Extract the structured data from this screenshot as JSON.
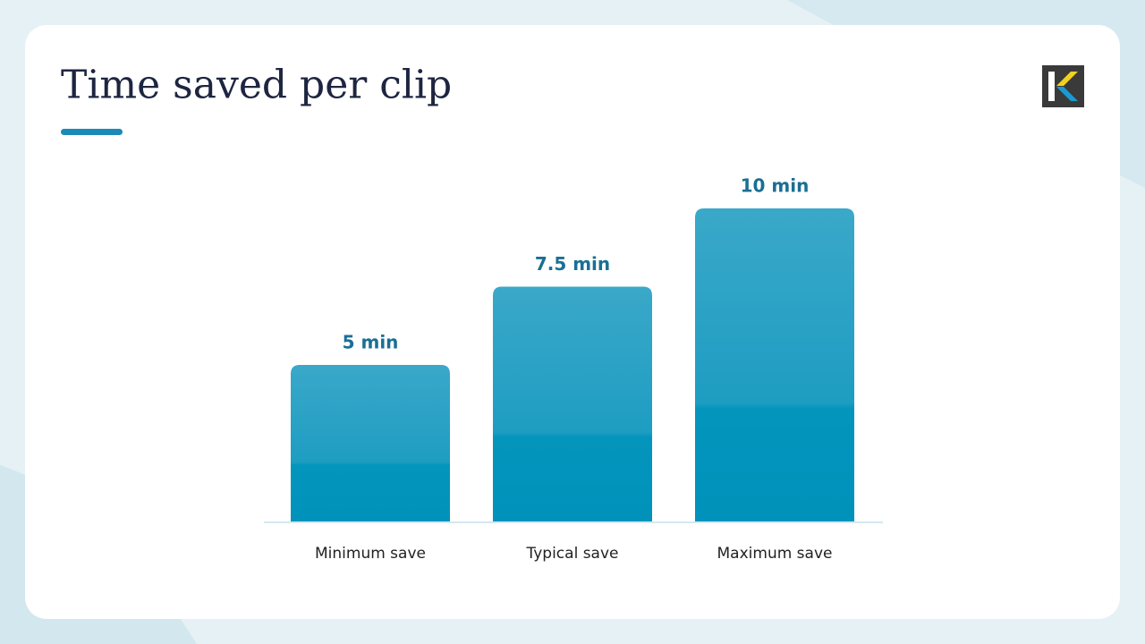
{
  "chart_data": {
    "type": "bar",
    "title": "Time saved per clip",
    "categories": [
      "Minimum save",
      "Typical save",
      "Maximum save"
    ],
    "values": [
      5,
      7.5,
      10
    ],
    "value_labels": [
      "5 min",
      "7.5 min",
      "10 min"
    ],
    "color": "#0092ba"
  }
}
